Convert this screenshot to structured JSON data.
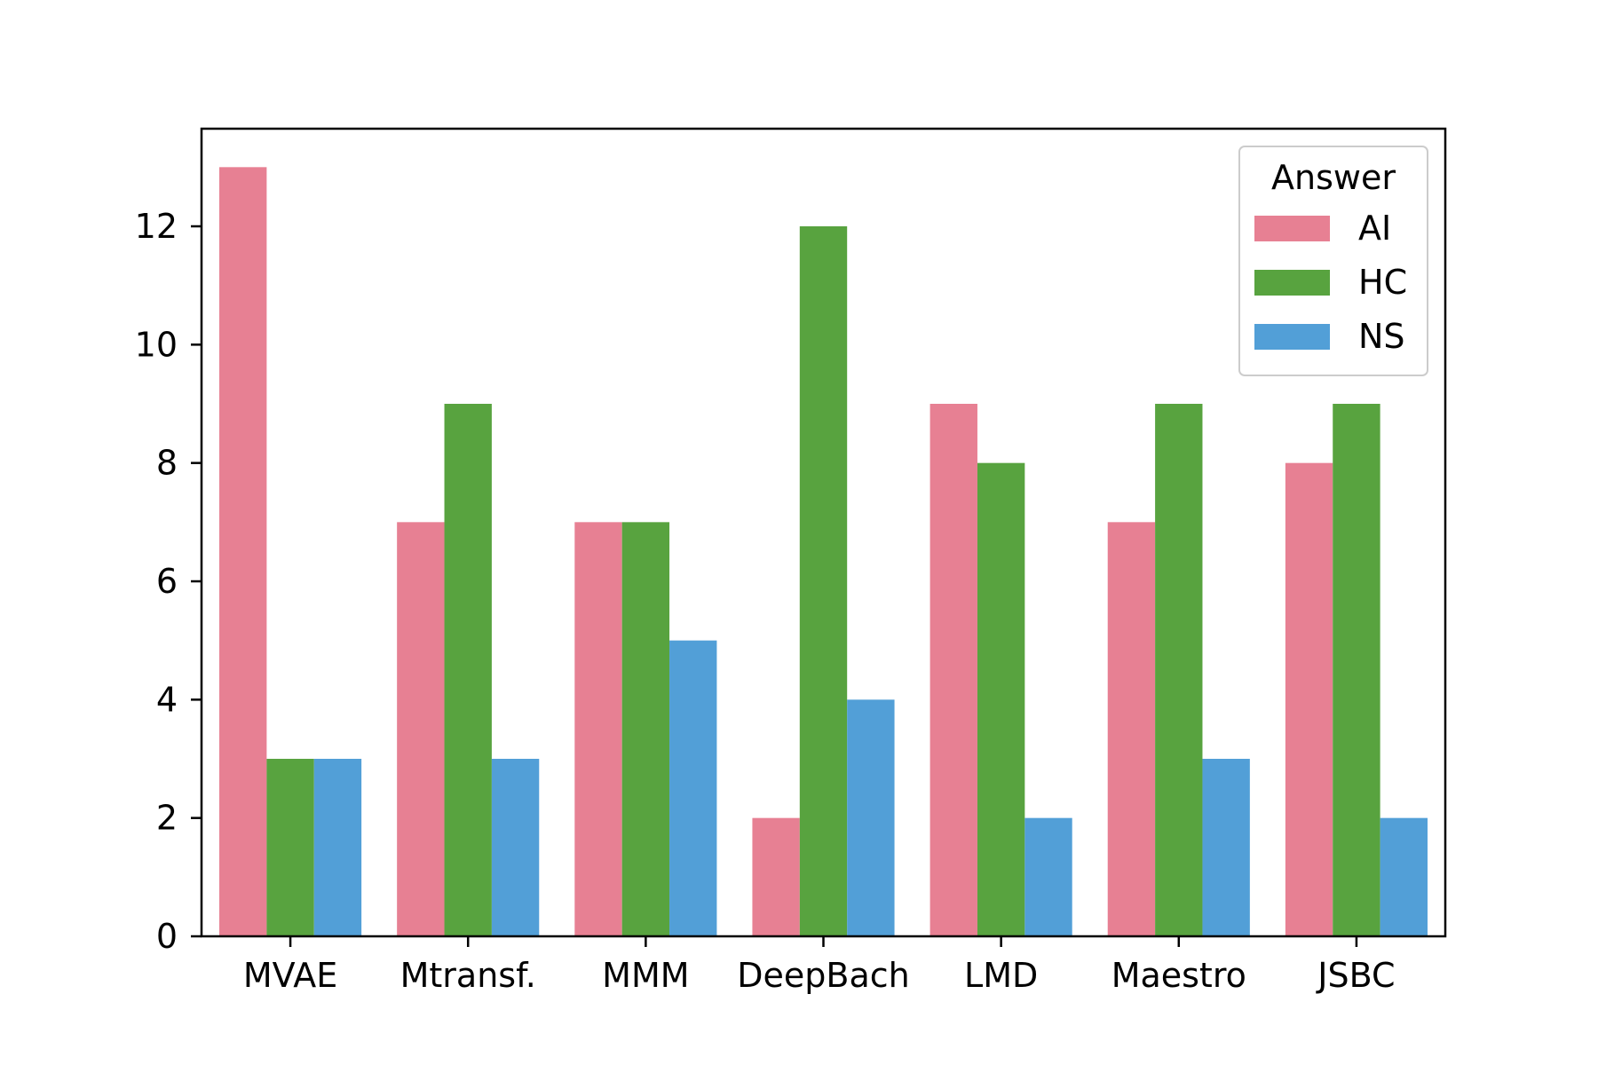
{
  "chart_data": {
    "type": "bar",
    "title": "",
    "xlabel": "",
    "ylabel": "",
    "categories": [
      "MVAE",
      "Mtransf.",
      "MMM",
      "DeepBach",
      "LMD",
      "Maestro",
      "JSBC"
    ],
    "series": [
      {
        "name": "AI",
        "color": "#e78093",
        "values": [
          13,
          7,
          7,
          2,
          9,
          7,
          8
        ]
      },
      {
        "name": "HC",
        "color": "#58a33f",
        "values": [
          3,
          9,
          7,
          12,
          8,
          9,
          9
        ]
      },
      {
        "name": "NS",
        "color": "#529fd7",
        "values": [
          3,
          3,
          5,
          4,
          2,
          3,
          2
        ]
      }
    ],
    "ylim": [
      0,
      13.65
    ],
    "yticks": [
      0,
      2,
      4,
      6,
      8,
      10,
      12
    ],
    "grid": false,
    "legend": {
      "title": "Answer",
      "placement": "top-right"
    }
  }
}
